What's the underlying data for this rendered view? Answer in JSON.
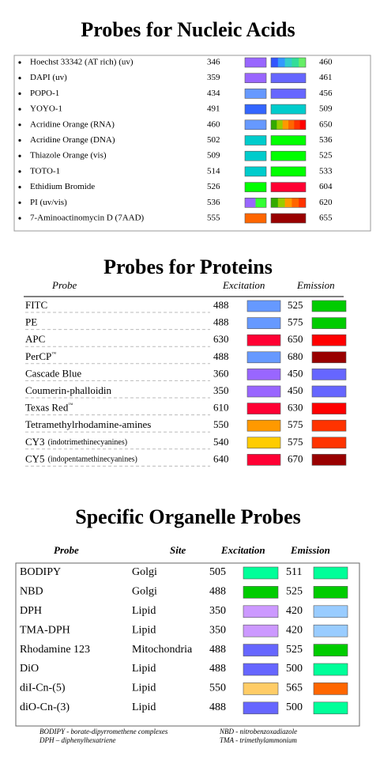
{
  "nucleic": {
    "title": "Probes for Nucleic Acids",
    "rows": [
      {
        "name": "Hoechst 33342  (AT rich) (uv)",
        "excitation": 346,
        "emission": 460,
        "ex_colors": [
          "#9966ff"
        ],
        "em_colors": [
          "#3355ff",
          "#3399ff",
          "#33cccc",
          "#33dd99",
          "#66ee66"
        ]
      },
      {
        "name": "DAPI (uv)",
        "excitation": 359,
        "emission": 461,
        "ex_colors": [
          "#9966ff"
        ],
        "em_colors": [
          "#6666ff"
        ]
      },
      {
        "name": "POPO-1",
        "excitation": 434,
        "emission": 456,
        "ex_colors": [
          "#6699ff"
        ],
        "em_colors": [
          "#6666ff"
        ]
      },
      {
        "name": "YOYO-1",
        "excitation": 491,
        "emission": 509,
        "ex_colors": [
          "#3366ff"
        ],
        "em_colors": [
          "#00cccc"
        ]
      },
      {
        "name": "Acridine Orange (RNA)",
        "excitation": 460,
        "emission": 650,
        "ex_colors": [
          "#6699ff"
        ],
        "em_colors": [
          "#33aa00",
          "#99cc00",
          "#ff9900",
          "#ff6600",
          "#ff3300",
          "#ff0000"
        ]
      },
      {
        "name": "Acridine Orange (DNA)",
        "excitation": 502,
        "emission": 536,
        "ex_colors": [
          "#00cccc"
        ],
        "em_colors": [
          "#00ff00"
        ]
      },
      {
        "name": "Thiazole Orange (vis)",
        "excitation": 509,
        "emission": 525,
        "ex_colors": [
          "#00cccc"
        ],
        "em_colors": [
          "#00ff00"
        ]
      },
      {
        "name": "TOTO-1",
        "excitation": 514,
        "emission": 533,
        "ex_colors": [
          "#00cccc"
        ],
        "em_colors": [
          "#00ff00"
        ]
      },
      {
        "name": "Ethidium Bromide",
        "excitation": 526,
        "emission": 604,
        "ex_colors": [
          "#00ff00"
        ],
        "em_colors": [
          "#ff0033"
        ]
      },
      {
        "name": "PI  (uv/vis)",
        "excitation": 536,
        "emission": 620,
        "ex_colors": [
          "#9966ff",
          "#33ff33"
        ],
        "em_colors": [
          "#33aa00",
          "#99cc00",
          "#ff9900",
          "#ff6600",
          "#ff3300"
        ]
      },
      {
        "name": "7-Aminoactinomycin D (7AAD)",
        "excitation": 555,
        "emission": 655,
        "ex_colors": [
          "#ff6600"
        ],
        "em_colors": [
          "#990000"
        ]
      }
    ]
  },
  "proteins": {
    "title": "Probes for Proteins",
    "headers": {
      "probe": "Probe",
      "excitation": "Excitation",
      "emission": "Emission"
    },
    "rows": [
      {
        "name": "FITC",
        "excitation": 488,
        "emission": 525,
        "ex_color": "#6699ff",
        "em_color": "#00cc00"
      },
      {
        "name": "PE",
        "excitation": 488,
        "emission": 575,
        "ex_color": "#6699ff",
        "em_color": "#00cc00"
      },
      {
        "name": "APC",
        "excitation": 630,
        "emission": 650,
        "ex_color": "#ff0033",
        "em_color": "#ff0000"
      },
      {
        "name": "PerCP",
        "sup": "™",
        "excitation": 488,
        "emission": 680,
        "ex_color": "#6699ff",
        "em_color": "#990000"
      },
      {
        "name": "Cascade Blue",
        "excitation": 360,
        "emission": 450,
        "ex_color": "#9966ff",
        "em_color": "#6666ff"
      },
      {
        "name": "Coumerin-phalloidin",
        "excitation": 350,
        "emission": 450,
        "ex_color": "#9966ff",
        "em_color": "#6666ff"
      },
      {
        "name": "Texas Red",
        "sup": "™",
        "excitation": 610,
        "emission": 630,
        "ex_color": "#ff0033",
        "em_color": "#ff0000"
      },
      {
        "name": "Tetramethylrhodamine-amines",
        "excitation": 550,
        "emission": 575,
        "ex_color": "#ff9900",
        "em_color": "#ff3300"
      },
      {
        "name": "CY3",
        "note": "(indotrimethinecyanines)",
        "excitation": 540,
        "emission": 575,
        "ex_color": "#ffcc00",
        "em_color": "#ff3300"
      },
      {
        "name": "CY5",
        "note": "(indopentamethinecyanines)",
        "excitation": 640,
        "emission": 670,
        "ex_color": "#ff0033",
        "em_color": "#990000"
      }
    ]
  },
  "organelles": {
    "title": "Specific Organelle Probes",
    "headers": {
      "probe": "Probe",
      "site": "Site",
      "excitation": "Excitation",
      "emission": "Emission"
    },
    "rows": [
      {
        "name": "BODIPY",
        "site": "Golgi",
        "excitation": 505,
        "emission": 511,
        "ex_color": "#00ff99",
        "em_color": "#00ff99"
      },
      {
        "name": "NBD",
        "site": "Golgi",
        "excitation": 488,
        "emission": 525,
        "ex_color": "#00cc00",
        "em_color": "#00cc00"
      },
      {
        "name": "DPH",
        "site": "Lipid",
        "excitation": 350,
        "emission": 420,
        "ex_color": "#cc99ff",
        "em_color": "#99ccff"
      },
      {
        "name": "TMA-DPH",
        "site": "Lipid",
        "excitation": 350,
        "emission": 420,
        "ex_color": "#cc99ff",
        "em_color": "#99ccff"
      },
      {
        "name": "Rhodamine 123",
        "site": "Mitochondria",
        "excitation": 488,
        "emission": 525,
        "ex_color": "#6666ff",
        "em_color": "#00cc00"
      },
      {
        "name": "DiO",
        "site": "Lipid",
        "excitation": 488,
        "emission": 500,
        "ex_color": "#6666ff",
        "em_color": "#00ff99"
      },
      {
        "name": "diI-Cn-(5)",
        "site": "Lipid",
        "excitation": 550,
        "emission": 565,
        "ex_color": "#ffcc66",
        "em_color": "#ff6600"
      },
      {
        "name": "diO-Cn-(3)",
        "site": "Lipid",
        "excitation": 488,
        "emission": 500,
        "ex_color": "#6666ff",
        "em_color": "#00ff99"
      }
    ]
  },
  "footnotes": [
    [
      "BODIPY - borate-dipyrromethene complexes",
      "NBD - nitrobenzoxadiazole"
    ],
    [
      "DPH – diphenylhexatriene",
      "TMA - trimethylammonium"
    ]
  ]
}
